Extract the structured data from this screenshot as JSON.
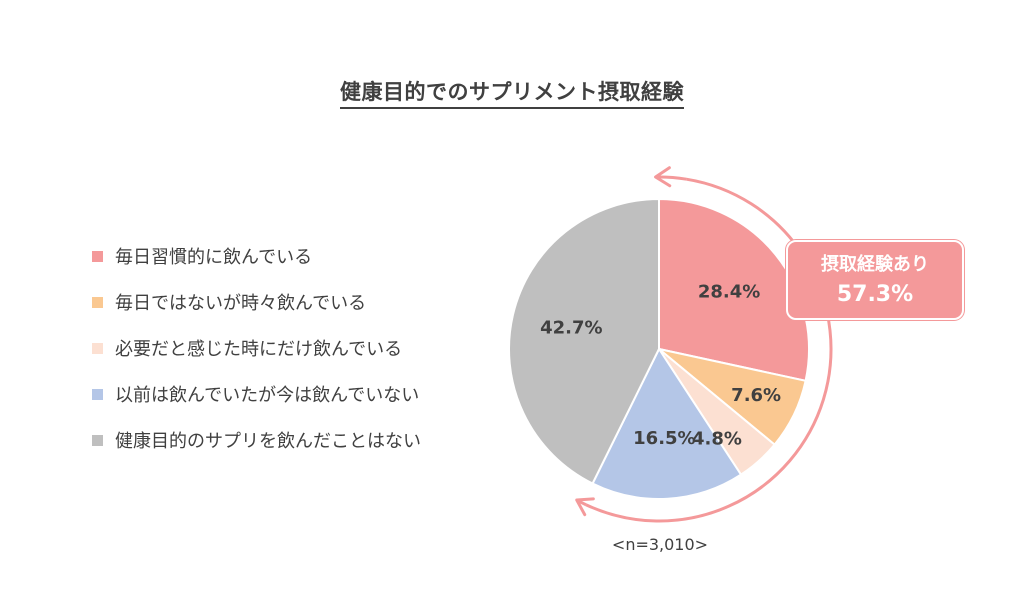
{
  "chart_data": {
    "type": "pie",
    "title": "健康目的でのサプリメント摂取経験",
    "categories": [
      "毎日習慣的に飲んでいる",
      "毎日ではないが時々飲んでいる",
      "必要だと感じた時にだけ飲んでいる",
      "以前は飲んでいたが今は飲んでいない",
      "健康目的のサプリを飲んだことはない"
    ],
    "values": [
      28.4,
      7.6,
      4.8,
      16.5,
      42.7
    ],
    "value_labels": [
      "28.4%",
      "7.6%",
      "4.8%",
      "16.5%",
      "42.7%"
    ],
    "colors": [
      "#F4999A",
      "#FAC891",
      "#FCE0D2",
      "#B4C6E7",
      "#BFBFBF"
    ],
    "legend_position": "left",
    "annotation": {
      "label": "摂取経験あり",
      "value": "57.3%",
      "color": "#F4999A"
    },
    "sample_note": "<n=3,010>"
  }
}
